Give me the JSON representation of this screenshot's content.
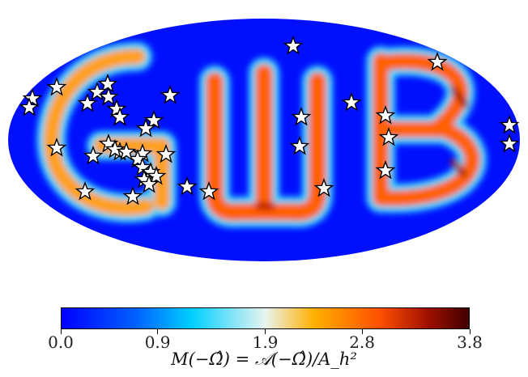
{
  "chart_data": {
    "type": "heatmap",
    "projection": "mollweide",
    "map_pattern_text": "GWB",
    "colormap": [
      "#0000ff",
      "#00d0ff",
      "#e8f4f0",
      "#ffb000",
      "#ff5000",
      "#400000"
    ],
    "colorbar": {
      "min": 0.0,
      "max": 3.8,
      "ticks": [
        "0.0",
        "0.9",
        "1.9",
        "2.8",
        "3.8"
      ],
      "tick_values": [
        0.0,
        0.9,
        1.9,
        2.8,
        3.8
      ],
      "label": "M(−Ω̂) = 𝒜(−Ω̂)/A_h²"
    },
    "markers": {
      "symbol": "star",
      "fill": "#ffffff",
      "stroke": "#000000",
      "count": 41
    }
  }
}
